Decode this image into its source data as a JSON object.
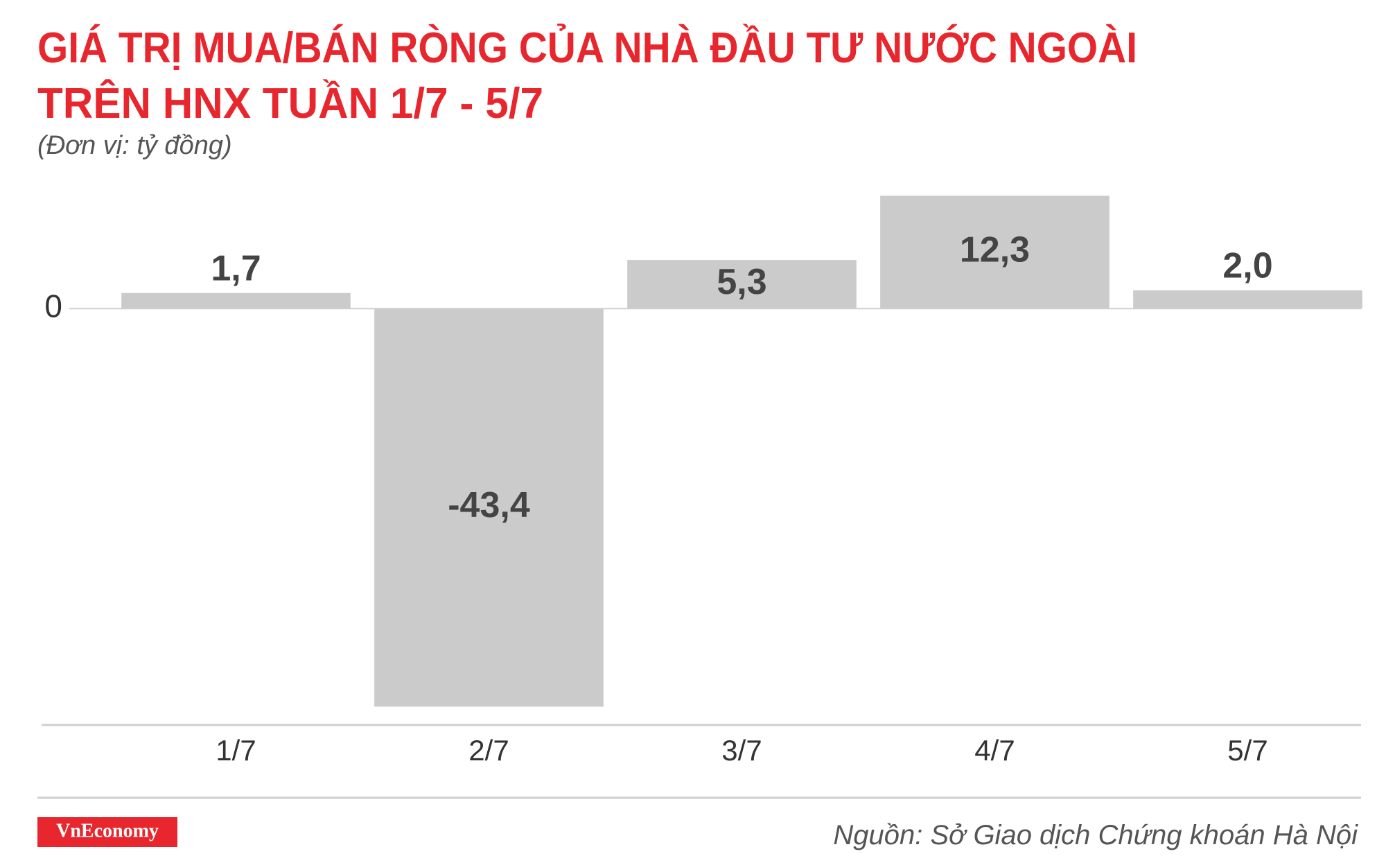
{
  "chart_data": {
    "type": "bar",
    "title": [
      "GIÁ TRỊ MUA/BÁN RÒNG CỦA NHÀ ĐẦU TƯ NƯỚC NGOÀI",
      "TRÊN HNX TUẦN 1/7 - 5/7"
    ],
    "subtitle": "(Đơn vị: tỷ đồng)",
    "categories": [
      "1/7",
      "2/7",
      "3/7",
      "4/7",
      "5/7"
    ],
    "values": [
      1.7,
      -43.4,
      5.3,
      12.3,
      2.0
    ],
    "value_labels": [
      "1,7",
      "-43,4",
      "5,3",
      "12,3",
      "2,0"
    ],
    "color": "#cccbcc",
    "ylim": [
      -45.4,
      14
    ],
    "yticks": [
      0
    ],
    "source": "Nguồn: Sở Giao dịch Chứng khoán Hà Nội",
    "logo": "VnEconomy"
  }
}
